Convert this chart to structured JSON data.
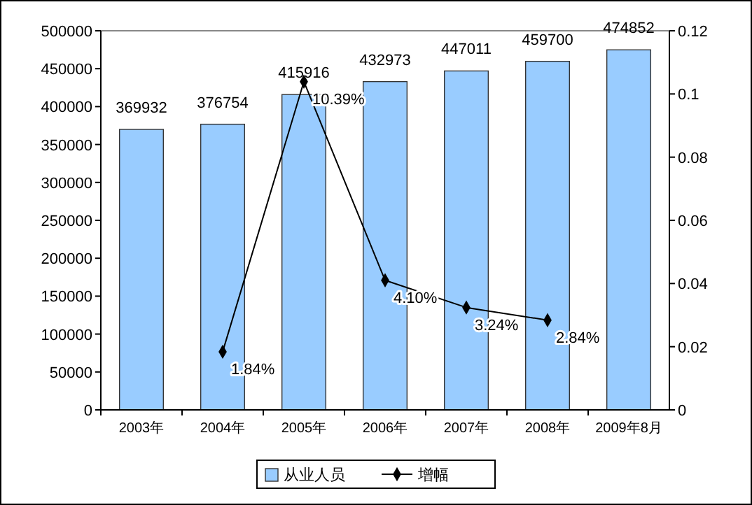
{
  "chart_data": {
    "type": "bar",
    "categories": [
      "2003年",
      "2004年",
      "2005年",
      "2006年",
      "2007年",
      "2008年",
      "2009年8月"
    ],
    "series": [
      {
        "name": "从业人员",
        "color": "#99ccff",
        "values": [
          369932,
          376754,
          415916,
          432973,
          447011,
          459700,
          474852
        ],
        "value_labels": [
          "369932",
          "376754",
          "415916",
          "432973",
          "447011",
          "459700",
          "474852"
        ]
      },
      {
        "name": "增幅",
        "type": "line",
        "axis": "y2",
        "color": "#000000",
        "marker": "diamond",
        "values": [
          null,
          0.0184,
          0.1039,
          0.041,
          0.0324,
          0.0284,
          null
        ],
        "value_labels": [
          null,
          "1.84%",
          "10.39%",
          "4.10%",
          "3.24%",
          "2.84%",
          null
        ]
      }
    ],
    "ylim": [
      0,
      500000
    ],
    "yticks": [
      0,
      50000,
      100000,
      150000,
      200000,
      250000,
      300000,
      350000,
      400000,
      450000,
      500000
    ],
    "y2lim": [
      0,
      0.12
    ],
    "y2ticks": [
      0,
      0.02,
      0.04,
      0.06,
      0.08,
      0.1,
      0.12
    ],
    "grid": false,
    "legend": "bottom"
  }
}
